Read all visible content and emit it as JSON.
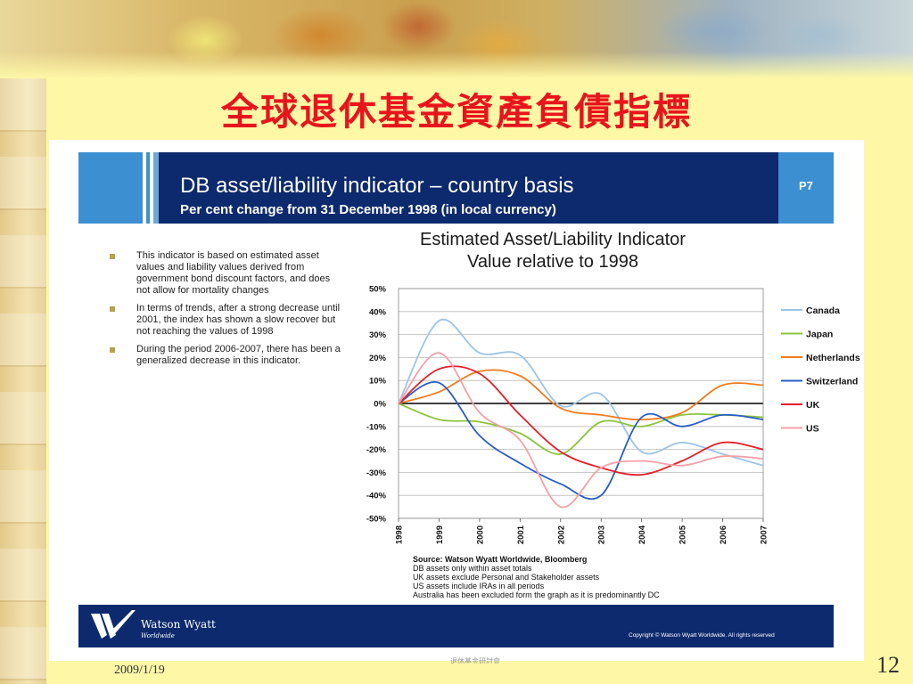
{
  "slide": {
    "title": "全球退休基金資產負債指標",
    "date": "2009/1/19",
    "number": "12",
    "footer_center": "退休基金研討會"
  },
  "panel": {
    "header_title": "DB asset/liability indicator – country basis",
    "header_subtitle": "Per cent change from 31 December 1998 (in local currency)",
    "page_tag": "P7",
    "bullets": [
      "This indicator is based on estimated asset values and liability values derived from government bond discount factors, and does not allow for mortality changes",
      "In terms of trends, after a strong decrease until 2001, the index has shown a slow recover but not reaching the values of 1998",
      "During the period 2006-2007, there has been a generalized decrease in this indicator."
    ],
    "source_lines": [
      "Source: Watson Wyatt Worldwide, Bloomberg",
      "DB assets only within asset totals",
      "UK assets exclude Personal and Stakeholder assets",
      "US assets include IRAs in all periods",
      "Australia has been excluded form the graph as it is predominantly DC"
    ],
    "footer_logo_name": "Watson Wyatt",
    "footer_logo_sub": "Worldwide",
    "copyright": "Copyright © Watson Wyatt Worldwide. All rights reserved"
  },
  "chart_data": {
    "type": "line",
    "title": "Estimated Asset/Liability Indicator",
    "subtitle": "Value relative to 1998",
    "x": [
      "1998",
      "1999",
      "2000",
      "2001",
      "2002",
      "2003",
      "2004",
      "2005",
      "2006",
      "2007"
    ],
    "ylim": [
      -50,
      50
    ],
    "yticks": [
      "50%",
      "40%",
      "30%",
      "20%",
      "10%",
      "0%",
      "-10%",
      "-20%",
      "-30%",
      "-40%",
      "-50%"
    ],
    "grid": true,
    "legend_position": "right",
    "series": [
      {
        "name": "Canada",
        "color": "#9cc4e8",
        "values": [
          0,
          36,
          22,
          21,
          -1,
          4,
          -21,
          -17,
          -22,
          -27
        ]
      },
      {
        "name": "Japan",
        "color": "#8ac43c",
        "values": [
          0,
          -7,
          -8,
          -13,
          -22,
          -8,
          -10,
          -5,
          -5,
          -6
        ]
      },
      {
        "name": "Netherlands",
        "color": "#f07b1e",
        "values": [
          0,
          5,
          14,
          12,
          -2,
          -5,
          -7,
          -4,
          8,
          8
        ]
      },
      {
        "name": "Switzerland",
        "color": "#2a5cc4",
        "values": [
          0,
          9,
          -14,
          -26,
          -35,
          -40,
          -6,
          -10,
          -5,
          -7
        ]
      },
      {
        "name": "UK",
        "color": "#e0202a",
        "values": [
          0,
          15,
          13,
          -5,
          -21,
          -28,
          -31,
          -25,
          -17,
          -20
        ]
      },
      {
        "name": "US",
        "color": "#f4a0a8",
        "values": [
          0,
          22,
          -4,
          -16,
          -45,
          -28,
          -25,
          -27,
          -23,
          -24
        ]
      }
    ]
  }
}
